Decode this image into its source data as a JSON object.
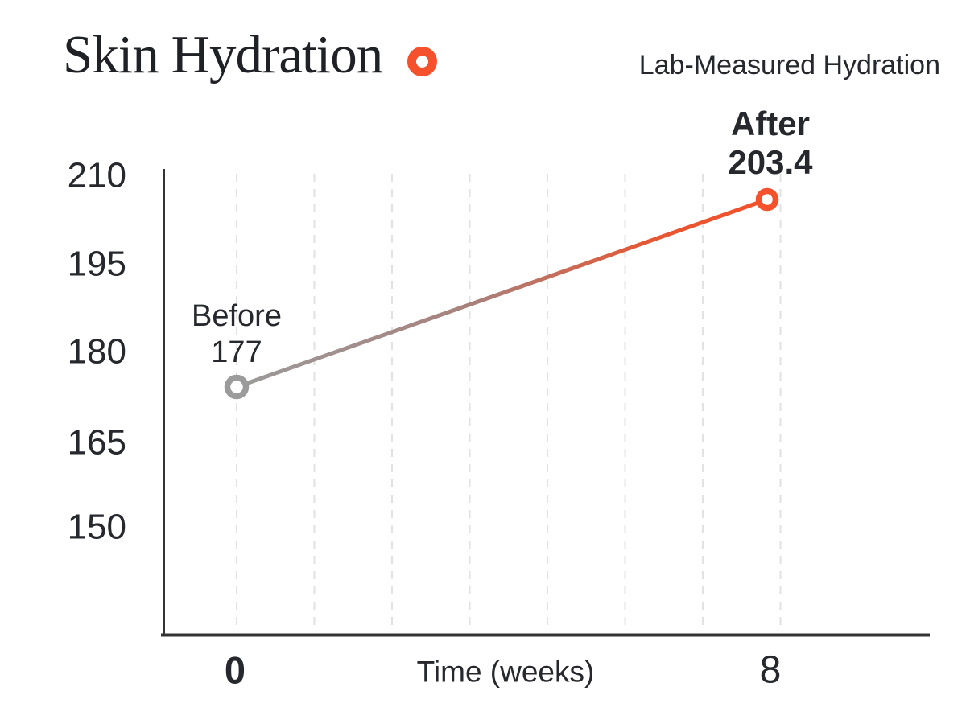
{
  "header": {
    "title": "Skin Hydration",
    "legend_label": "Lab-Measured Hydration"
  },
  "colors": {
    "accent_orange": "#f4512c",
    "point_gray": "#9b9b9b",
    "text_dark": "#26282e",
    "grid_line": "#e2e2e2",
    "axis_line": "#333333"
  },
  "chart_data": {
    "type": "line",
    "title": "Skin Hydration",
    "xlabel": "Time (weeks)",
    "ylabel": "",
    "x": [
      0,
      8
    ],
    "series": [
      {
        "name": "Lab-Measured Hydration",
        "values": [
          177,
          203.4
        ]
      }
    ],
    "point_annotations": [
      {
        "title": "Before",
        "value": "177",
        "emphasis": "normal",
        "marker_color": "#9b9b9b"
      },
      {
        "title": "After",
        "value": "203.4",
        "emphasis": "bold",
        "marker_color": "#f4512c"
      }
    ],
    "x_tick_labels": [
      "0",
      "8"
    ],
    "y_ticks": [
      "210",
      "195",
      "180",
      "165",
      "150"
    ],
    "xlim": [
      0,
      8
    ],
    "ylim": [
      131,
      212
    ],
    "grid": "vertical-dashed-weekly",
    "legend_position": "top-right",
    "line_style": "gradient-gray-to-orange"
  }
}
